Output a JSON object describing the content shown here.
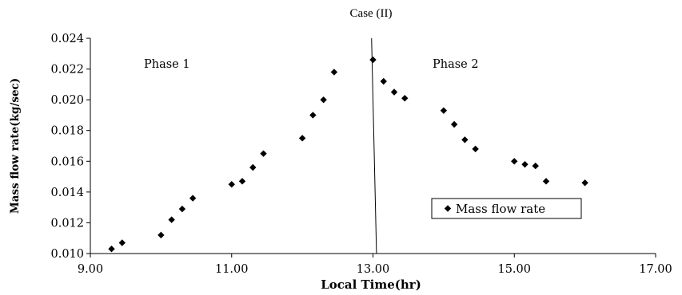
{
  "chart_data": {
    "type": "scatter",
    "title": "Case (II)",
    "xlabel": "Local Time(hr)",
    "ylabel": "Mass flow rate(kg/sec)",
    "xlim": [
      9.0,
      17.0
    ],
    "ylim": [
      0.01,
      0.024
    ],
    "x_ticks": [
      "9.00",
      "11.00",
      "13.00",
      "15.00",
      "17.00"
    ],
    "y_ticks": [
      "0.010",
      "0.012",
      "0.014",
      "0.016",
      "0.018",
      "0.020",
      "0.022",
      "0.024"
    ],
    "grid": false,
    "legend_position": "inside-lower-right",
    "marker": "diamond",
    "marker_color": "#000000",
    "annotations": [
      "Phase 1",
      "Phase 2"
    ],
    "divider_line": {
      "x": [
        12.98,
        13.05
      ],
      "y": [
        0.024,
        0.01
      ]
    },
    "series": [
      {
        "name": "Mass flow rate",
        "points": [
          [
            9.3,
            0.0103
          ],
          [
            9.45,
            0.0107
          ],
          [
            10.0,
            0.0112
          ],
          [
            10.15,
            0.0122
          ],
          [
            10.3,
            0.0129
          ],
          [
            10.45,
            0.0136
          ],
          [
            11.0,
            0.0145
          ],
          [
            11.15,
            0.0147
          ],
          [
            11.3,
            0.0156
          ],
          [
            11.45,
            0.0165
          ],
          [
            12.0,
            0.0175
          ],
          [
            12.15,
            0.019
          ],
          [
            12.3,
            0.02
          ],
          [
            12.45,
            0.0218
          ],
          [
            13.0,
            0.0226
          ],
          [
            13.15,
            0.0212
          ],
          [
            13.3,
            0.0205
          ],
          [
            13.45,
            0.0201
          ],
          [
            14.0,
            0.0193
          ],
          [
            14.15,
            0.0184
          ],
          [
            14.3,
            0.0174
          ],
          [
            14.45,
            0.0168
          ],
          [
            15.0,
            0.016
          ],
          [
            15.15,
            0.0158
          ],
          [
            15.3,
            0.0157
          ],
          [
            15.45,
            0.0147
          ],
          [
            16.0,
            0.0146
          ]
        ]
      }
    ]
  }
}
